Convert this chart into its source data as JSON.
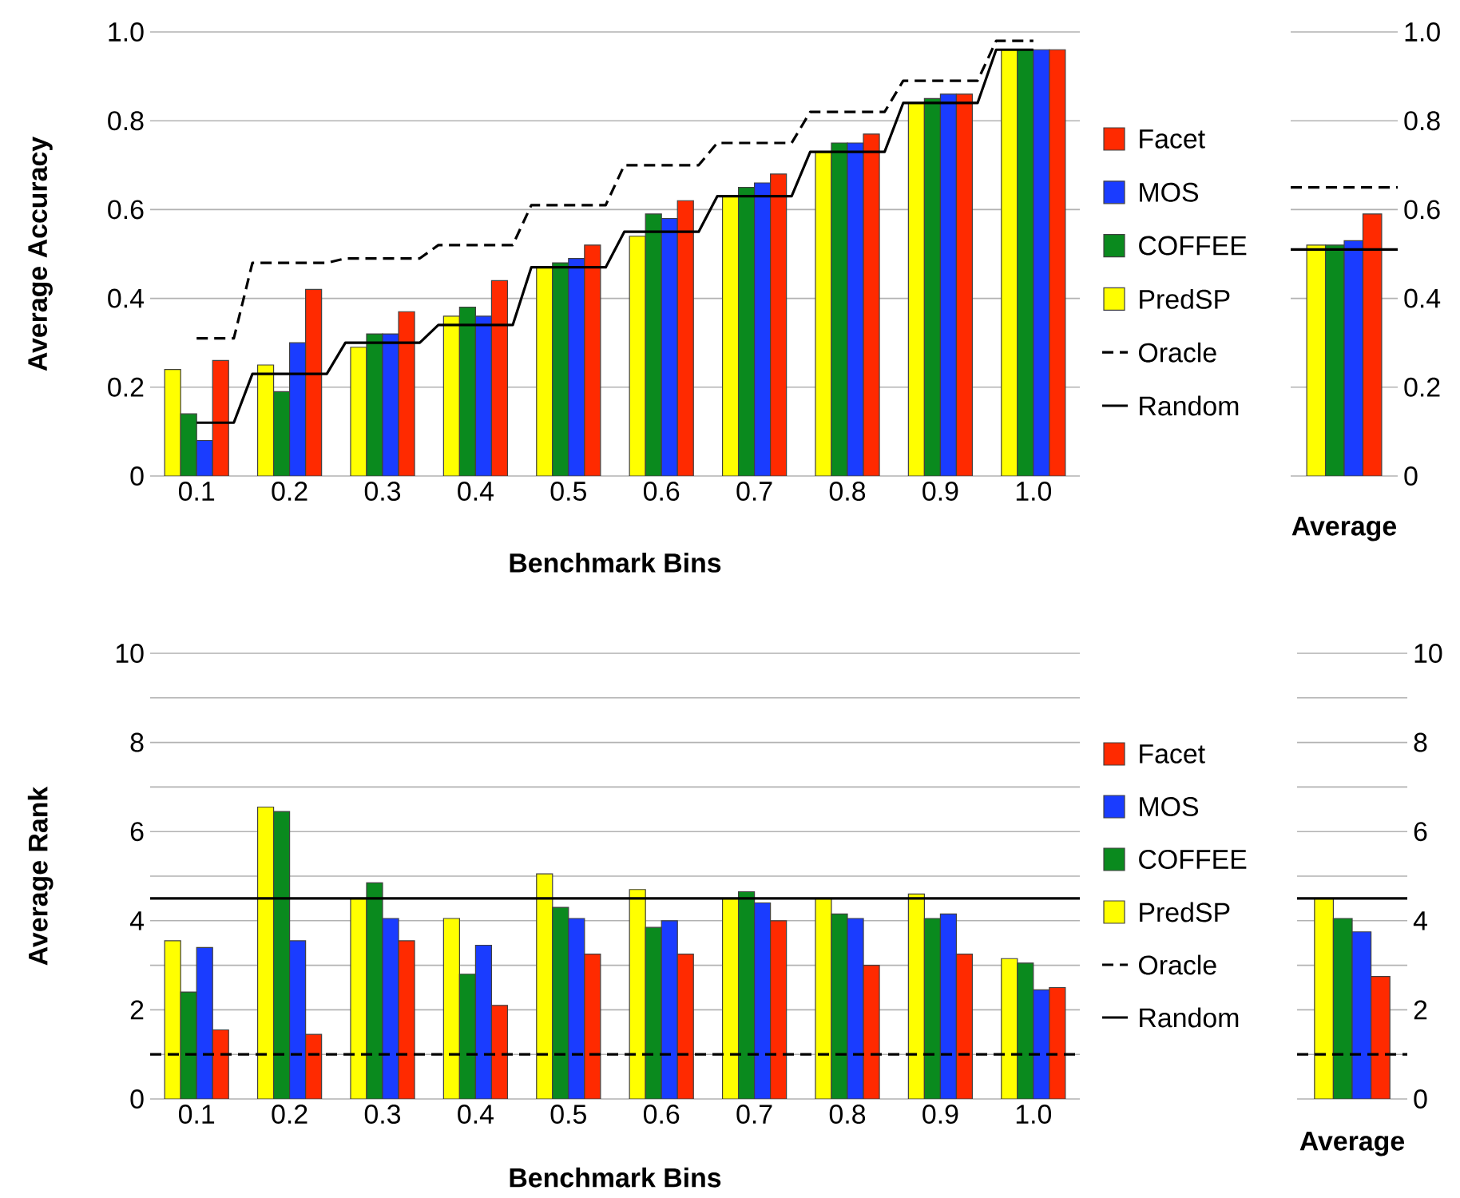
{
  "chart_data": [
    {
      "type": "bar",
      "categories": [
        "0.1",
        "0.2",
        "0.3",
        "0.4",
        "0.5",
        "0.6",
        "0.7",
        "0.8",
        "0.9",
        "1.0"
      ],
      "xlabel": "Benchmark Bins",
      "ylabel": "Average Accuracy",
      "ylim": [
        0,
        1
      ],
      "yticks": [
        0,
        0.2,
        0.4,
        0.6,
        0.8,
        {
          "value": 1,
          "label": "1.0"
        }
      ],
      "grid": "y",
      "legend": "right",
      "series": [
        {
          "name": "PredSP",
          "color": "#ffff00",
          "values": [
            0.24,
            0.25,
            0.29,
            0.36,
            0.47,
            0.54,
            0.63,
            0.73,
            0.84,
            0.96
          ]
        },
        {
          "name": "COFFEE",
          "color": "#0a8a1e",
          "values": [
            0.14,
            0.19,
            0.32,
            0.38,
            0.48,
            0.59,
            0.65,
            0.75,
            0.85,
            0.96
          ]
        },
        {
          "name": "MOS",
          "color": "#1a3cff",
          "values": [
            0.08,
            0.3,
            0.32,
            0.36,
            0.49,
            0.58,
            0.66,
            0.75,
            0.86,
            0.96
          ]
        },
        {
          "name": "Facet",
          "color": "#ff2a00",
          "values": [
            0.26,
            0.42,
            0.37,
            0.44,
            0.52,
            0.62,
            0.68,
            0.77,
            0.86,
            0.96
          ]
        },
        {
          "name": "Oracle",
          "type": "step",
          "line_style": "dashed",
          "color": "#000000",
          "values": [
            0.31,
            0.48,
            0.49,
            0.52,
            0.61,
            0.7,
            0.75,
            0.82,
            0.89,
            0.98
          ]
        },
        {
          "name": "Random",
          "type": "step",
          "line_style": "solid",
          "color": "#000000",
          "values": [
            0.12,
            0.23,
            0.3,
            0.34,
            0.47,
            0.55,
            0.63,
            0.73,
            0.84,
            0.96
          ]
        }
      ]
    },
    {
      "type": "bar",
      "categories": [
        "Average"
      ],
      "ylim": [
        0,
        1
      ],
      "yticks": [
        0,
        0.2,
        0.4,
        0.6,
        0.8,
        {
          "value": 1,
          "label": "1.0"
        }
      ],
      "grid": "y",
      "series": [
        {
          "color": "#ffff00",
          "values": [
            0.52
          ]
        },
        {
          "color": "#0a8a1e",
          "values": [
            0.52
          ]
        },
        {
          "color": "#1a3cff",
          "values": [
            0.53
          ]
        },
        {
          "color": "#ff2a00",
          "values": [
            0.59
          ]
        }
      ],
      "ref_lines": [
        {
          "axis": "y",
          "value": 0.65,
          "line_style": "dashed",
          "color": "#000000"
        },
        {
          "axis": "y",
          "value": 0.51,
          "line_style": "solid",
          "color": "#000000"
        }
      ]
    },
    {
      "type": "bar",
      "categories": [
        "0.1",
        "0.2",
        "0.3",
        "0.4",
        "0.5",
        "0.6",
        "0.7",
        "0.8",
        "0.9",
        "1.0"
      ],
      "xlabel": "Benchmark Bins",
      "ylabel": "Average Rank",
      "ylim": [
        0,
        10
      ],
      "yticks": [
        0,
        {
          "value": 1,
          "label": null
        },
        2,
        {
          "value": 3,
          "label": null
        },
        4,
        {
          "value": 5,
          "label": null
        },
        6,
        {
          "value": 7,
          "label": null
        },
        8,
        {
          "value": 9,
          "label": null
        },
        10
      ],
      "grid": "y",
      "legend": "right",
      "series": [
        {
          "name": "PredSP",
          "color": "#ffff00",
          "values": [
            3.55,
            6.55,
            4.5,
            4.05,
            5.05,
            4.7,
            4.5,
            4.5,
            4.6,
            3.15
          ]
        },
        {
          "name": "COFFEE",
          "color": "#0a8a1e",
          "values": [
            2.4,
            6.45,
            4.85,
            2.8,
            4.3,
            3.85,
            4.65,
            4.15,
            4.05,
            3.05
          ]
        },
        {
          "name": "MOS",
          "color": "#1a3cff",
          "values": [
            3.4,
            3.55,
            4.05,
            3.45,
            4.05,
            4.0,
            4.4,
            4.05,
            4.15,
            2.45
          ]
        },
        {
          "name": "Facet",
          "color": "#ff2a00",
          "values": [
            1.55,
            1.45,
            3.55,
            2.1,
            3.25,
            3.25,
            4.0,
            3.0,
            3.25,
            2.5
          ]
        }
      ],
      "ref_lines": [
        {
          "axis": "y",
          "value": 1,
          "label": "Oracle",
          "line_style": "dashed",
          "color": "#000000"
        },
        {
          "axis": "y",
          "value": 4.5,
          "label": "Random",
          "line_style": "solid",
          "color": "#000000"
        }
      ]
    },
    {
      "type": "bar",
      "categories": [
        "Average"
      ],
      "ylim": [
        0,
        10
      ],
      "yticks": [
        0,
        {
          "value": 1,
          "label": null
        },
        2,
        {
          "value": 3,
          "label": null
        },
        4,
        {
          "value": 5,
          "label": null
        },
        6,
        {
          "value": 7,
          "label": null
        },
        8,
        {
          "value": 9,
          "label": null
        },
        10
      ],
      "grid": "y",
      "series": [
        {
          "color": "#ffff00",
          "values": [
            4.5
          ]
        },
        {
          "color": "#0a8a1e",
          "values": [
            4.05
          ]
        },
        {
          "color": "#1a3cff",
          "values": [
            3.75
          ]
        },
        {
          "color": "#ff2a00",
          "values": [
            2.75
          ]
        }
      ],
      "ref_lines": [
        {
          "axis": "y",
          "value": 1,
          "line_style": "dashed",
          "color": "#000000"
        },
        {
          "axis": "y",
          "value": 4.5,
          "line_style": "solid",
          "color": "#000000"
        }
      ]
    }
  ]
}
